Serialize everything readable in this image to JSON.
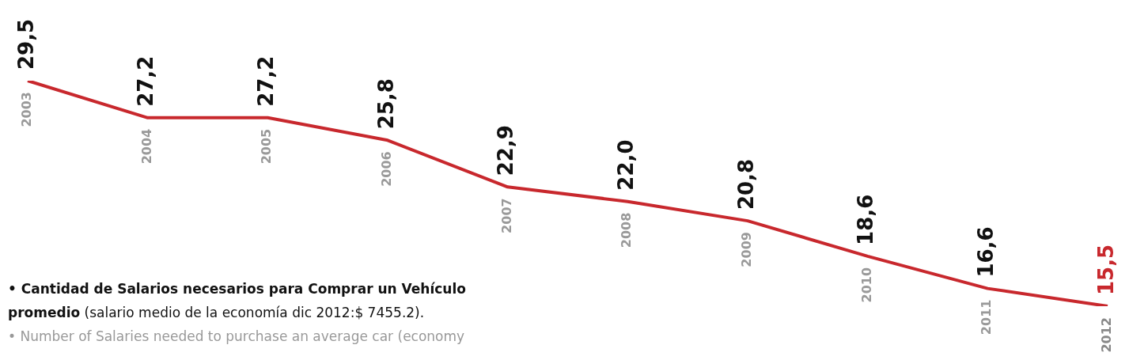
{
  "chart_data": {
    "type": "line",
    "categories": [
      "2003",
      "2004",
      "2005",
      "2006",
      "2007",
      "2008",
      "2009",
      "2010",
      "2011",
      "2012"
    ],
    "series": [
      {
        "color": "#c8282d",
        "values": [
          29.5,
          27.2,
          27.2,
          25.8,
          22.9,
          22.0,
          20.8,
          18.6,
          16.6,
          15.5
        ],
        "value_labels": [
          "29,5",
          "27,2",
          "27,2",
          "25,8",
          "22,9",
          "22,0",
          "20,8",
          "18,6",
          "16,6",
          "15,5"
        ]
      }
    ],
    "marker": "none",
    "legend": false,
    "annotations": [
      "• Cantidad de Salarios necesarios para Comprar un Vehículo promedio",
      "(salario medio de la economía dic 2012:$ 7455.2).",
      "• Number of Salaries needed to purchase an average car (economy"
    ]
  }
}
